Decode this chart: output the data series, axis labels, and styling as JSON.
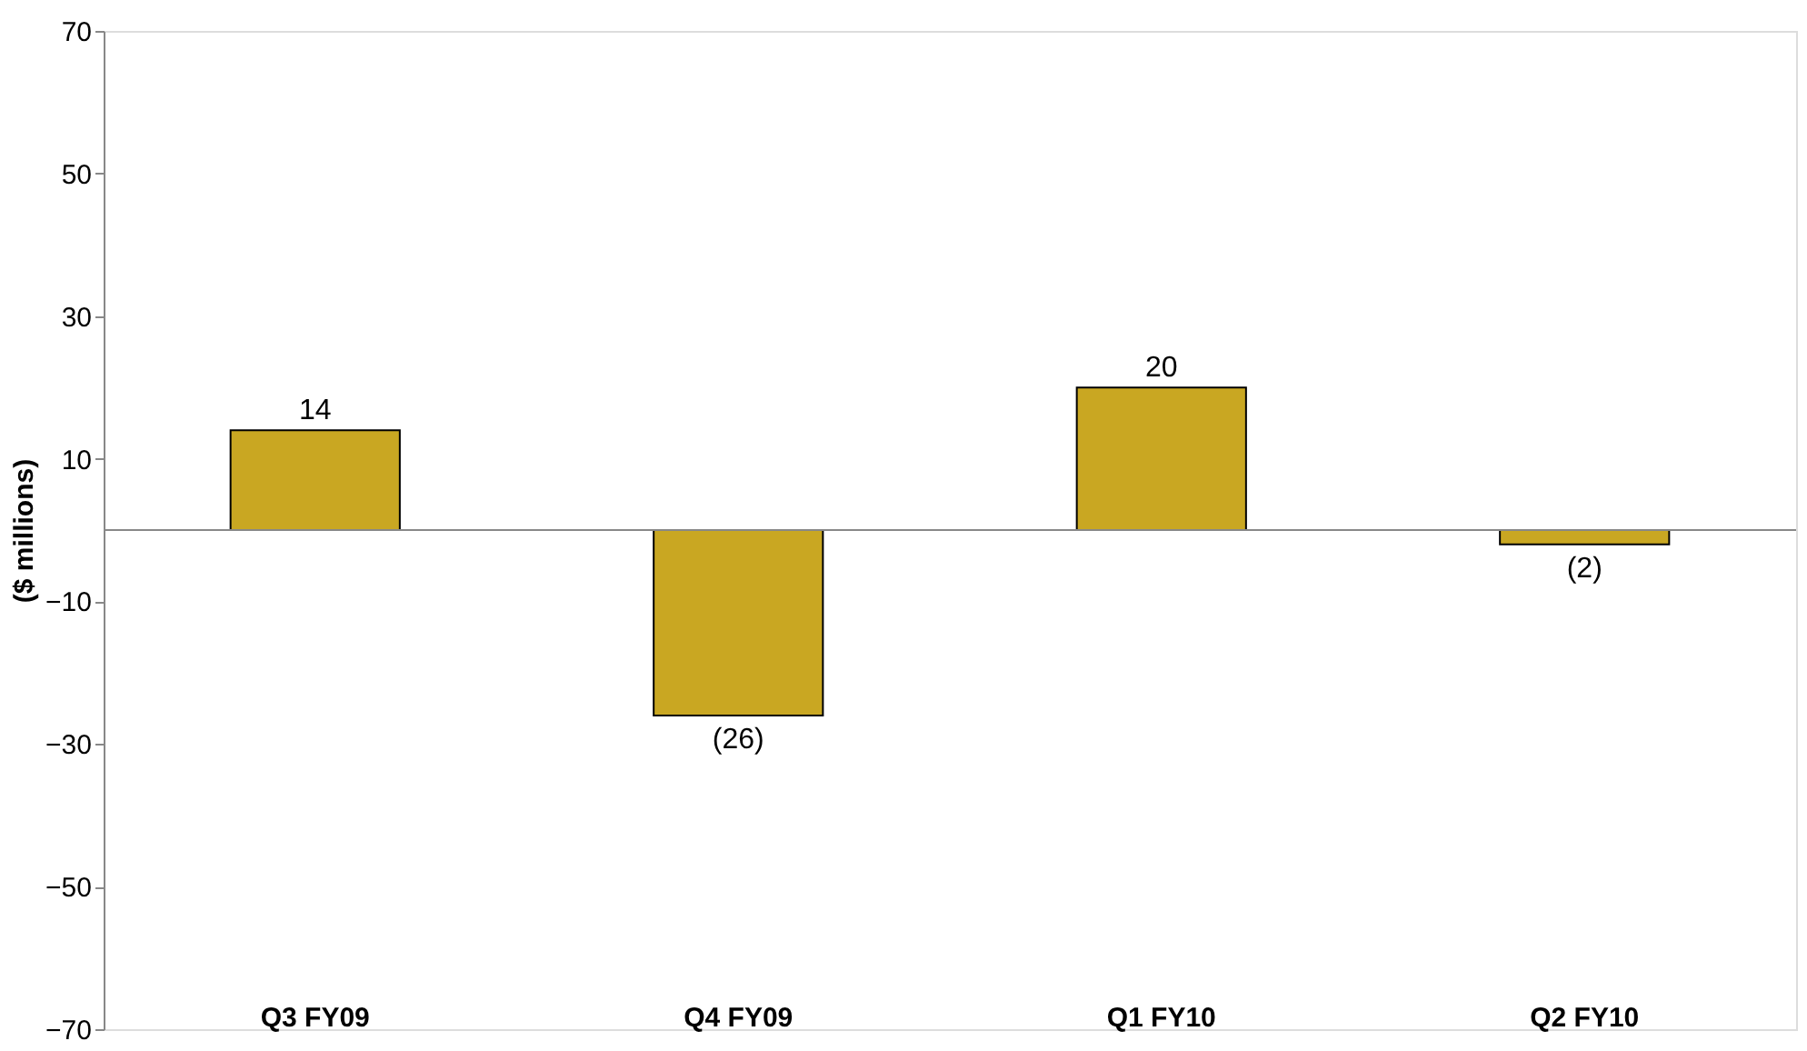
{
  "chart_data": {
    "type": "bar",
    "ylabel": "($ millions)",
    "categories": [
      "Q3 FY09",
      "Q4 FY09",
      "Q1 FY10",
      "Q2 FY10"
    ],
    "values": [
      14,
      -26,
      20,
      -2
    ],
    "value_labels": [
      "14",
      "(26)",
      "20",
      "(2)"
    ],
    "color": "#c9a722",
    "ylim": [
      -70,
      70
    ],
    "yticks": [
      -70,
      -50,
      -30,
      -10,
      10,
      30,
      50,
      70
    ],
    "grid": false
  }
}
